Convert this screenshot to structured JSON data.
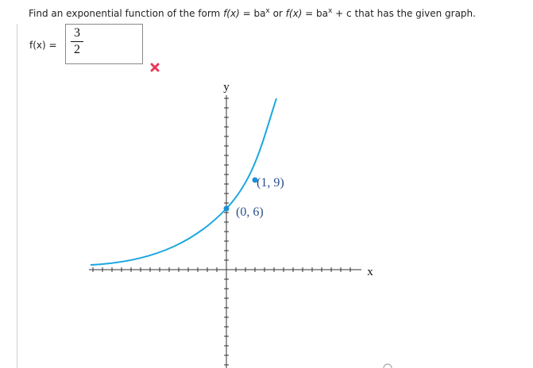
{
  "question": [
    "Find an exponential function of the form ",
    "f(x)",
    " = ba",
    "x",
    " or ",
    "f(x)",
    " = ba",
    "x",
    " + c that has the given graph."
  ],
  "answer": {
    "label": "f(x) =",
    "numerator": "3",
    "denominator": "2"
  },
  "graph": {
    "y_label": "y",
    "x_label": "x",
    "point_labels": [
      "(1, 9)",
      "(0, 6)"
    ]
  }
}
